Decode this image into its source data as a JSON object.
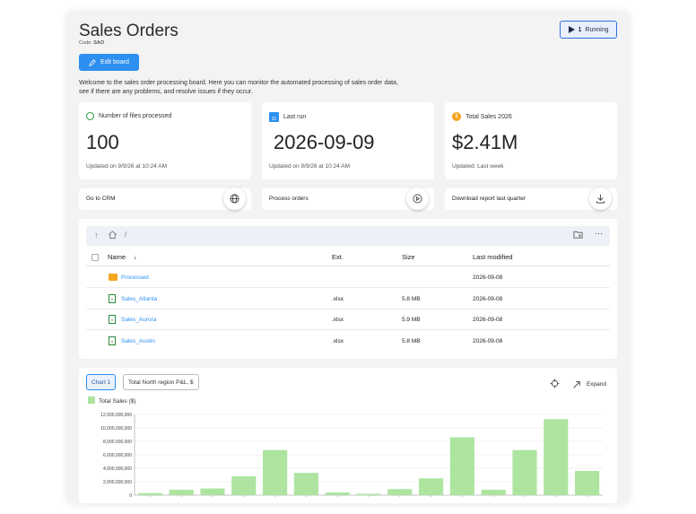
{
  "header": {
    "title": "Sales Orders",
    "code_label": "Code:",
    "code_value": "SAO",
    "running_count": "1",
    "running_label": "Running",
    "edit_label": "Edit board",
    "description": "Welcome to the sales order processing board. Here you can monitor the automated processing of sales order data, see if there are any problems, and resolve issues if they occur."
  },
  "kpis": [
    {
      "label": "Number of files processed",
      "value": "100",
      "sub": "Updated on 9/9/26 at 10:24 AM",
      "icon": "clock-icon"
    },
    {
      "label": "Last run",
      "value": "2026-09-09",
      "sub": "Updated on 9/9/26 at 10:24 AM",
      "icon": "calendar-icon",
      "icon_text": "31"
    },
    {
      "label": "Total Sales 2026",
      "value": "$2.41M",
      "sub": "Updated: Last week",
      "icon": "coin-icon",
      "icon_text": "$"
    }
  ],
  "actions": [
    {
      "label": "Go to CRM",
      "icon": "globe-icon"
    },
    {
      "label": "Process orders",
      "icon": "play-circle-icon"
    },
    {
      "label": "Download report last quarter",
      "icon": "download-icon"
    }
  ],
  "browser": {
    "path": "/",
    "columns": {
      "name": "Name",
      "ext": "Ext.",
      "size": "Size",
      "modified": "Last modified"
    },
    "rows": [
      {
        "name": "Processed",
        "ext": "",
        "size": "",
        "modified": "2026-09-08",
        "type": "folder"
      },
      {
        "name": "Sales_Atlanta",
        "ext": ".xlsx",
        "size": "5.8 MB",
        "modified": "2026-09-08",
        "type": "xlsx"
      },
      {
        "name": "Sales_Aurora",
        "ext": ".xlsx",
        "size": "5.9 MB",
        "modified": "2026-09-08",
        "type": "xlsx"
      },
      {
        "name": "Sales_Austin",
        "ext": ".xlsx",
        "size": "5.8 MB",
        "modified": "2026-09-08",
        "type": "xlsx"
      }
    ]
  },
  "chart_panel": {
    "tab1": "Chart 1",
    "tab2": "Total North region P&L, $",
    "expand_label": "Expand"
  },
  "colors": {
    "accent": "#2d8ff0",
    "bar": "#ace4a0"
  },
  "chart_data": {
    "type": "bar",
    "series": [
      {
        "name": "Total Sales ($)",
        "values": [
          300000000,
          800000000,
          1000000000,
          2800000000,
          6700000000,
          3300000000,
          400000000,
          200000000,
          900000000,
          2500000000,
          8600000000,
          800000000,
          6700000000,
          11300000000,
          3600000000
        ]
      }
    ],
    "ylim": [
      0,
      12000000000
    ],
    "yticks": [
      "0",
      "2,000,000,000",
      "4,000,000,000",
      "6,000,000,000",
      "8,000,000,000",
      "10,000,000,000",
      "12,000,000,000"
    ],
    "grid": true,
    "legend": "top-left"
  }
}
